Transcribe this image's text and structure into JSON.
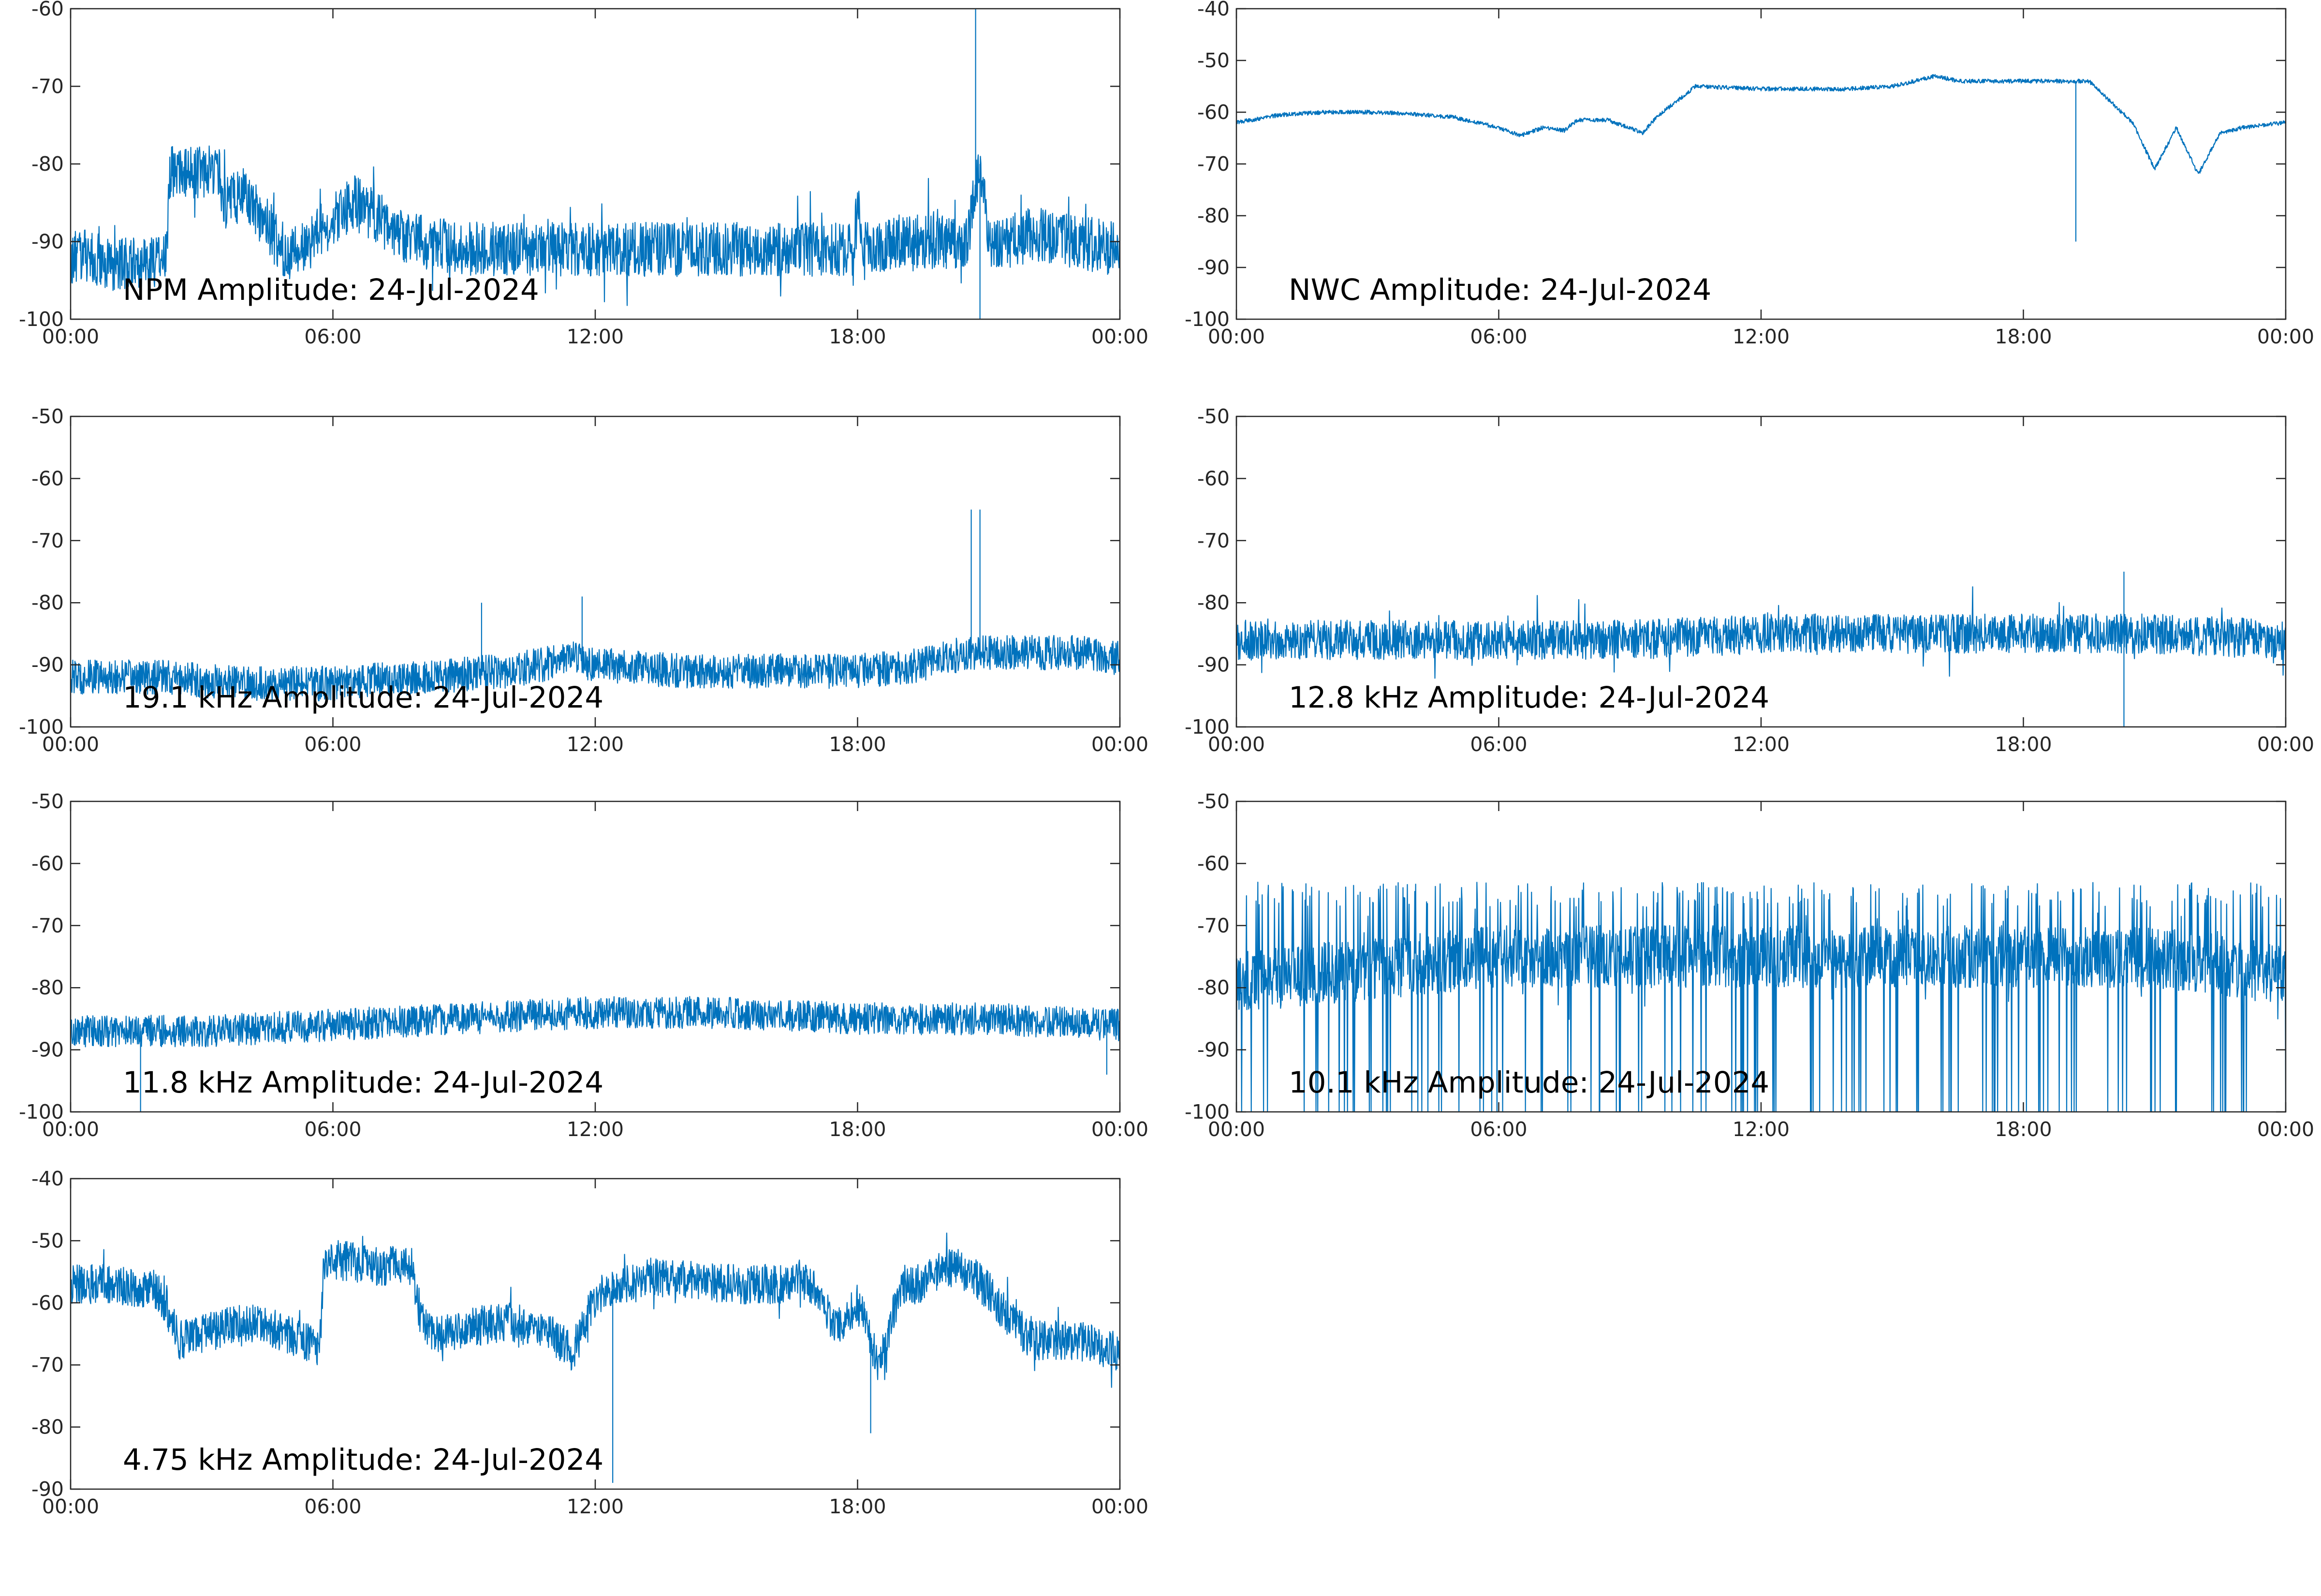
{
  "colors": {
    "trace": "#0072BD",
    "axes": "#262626",
    "text": "#000000"
  },
  "chart_data": [
    {
      "type": "line",
      "panel": "NPM",
      "title": "NPM Amplitude: 24-Jul-2024",
      "x_ticks": [
        "00:00",
        "06:00",
        "12:00",
        "18:00",
        "00:00"
      ],
      "ylim": [
        -100,
        -60
      ],
      "y_ticks": [
        -100,
        -90,
        -80,
        -70,
        -60
      ],
      "grid": false,
      "x_hours": [
        0,
        0.5,
        1,
        1.5,
        2,
        2.2,
        2.25,
        3,
        3.4,
        3.5,
        4,
        4.5,
        5,
        5.5,
        6,
        6.5,
        7,
        7.5,
        8,
        9,
        10,
        11,
        12,
        13,
        14,
        15,
        16,
        17,
        17.9,
        18,
        18.1,
        19,
        20,
        20.5,
        20.8,
        21,
        21.5,
        22,
        23,
        24
      ],
      "y_mean": [
        -92,
        -92,
        -93,
        -93,
        -93,
        -92,
        -81,
        -81,
        -81,
        -85,
        -84,
        -88,
        -92,
        -90,
        -87,
        -85,
        -87,
        -89,
        -90,
        -91,
        -91,
        -91,
        -91,
        -91,
        -91,
        -91,
        -91,
        -91,
        -91,
        -85,
        -91,
        -90,
        -90,
        -90,
        -80,
        -90,
        -90,
        -89,
        -90,
        -91
      ],
      "noise": 3.5,
      "spikes": [
        {
          "x": 20.7,
          "y": -60
        },
        {
          "x": 20.8,
          "y": -100
        }
      ]
    },
    {
      "type": "line",
      "panel": "NWC",
      "title": "NWC Amplitude: 24-Jul-2024",
      "x_ticks": [
        "00:00",
        "06:00",
        "12:00",
        "18:00",
        "00:00"
      ],
      "ylim": [
        -100,
        -40
      ],
      "y_ticks": [
        -100,
        -90,
        -80,
        -70,
        -60,
        -50,
        -40
      ],
      "grid": false,
      "x_hours": [
        0,
        1,
        2,
        3,
        4,
        5,
        6,
        6.5,
        7,
        7.5,
        7.8,
        8.5,
        9.3,
        9.6,
        10.5,
        12,
        14,
        15,
        16,
        16.5,
        18,
        19.5,
        20,
        20.5,
        21,
        21.5,
        22,
        22.5,
        23,
        24
      ],
      "y_mean": [
        -62,
        -60.5,
        -60,
        -60,
        -60.3,
        -61,
        -63,
        -64.5,
        -63,
        -63.5,
        -61.5,
        -61.5,
        -64,
        -61,
        -55,
        -55.5,
        -55.5,
        -55,
        -53,
        -54,
        -54,
        -54,
        -58,
        -62,
        -71,
        -63,
        -72,
        -64,
        -63,
        -62
      ],
      "noise": 0.4,
      "spikes": [
        {
          "x": 19.2,
          "y": -85
        }
      ]
    },
    {
      "type": "line",
      "panel": "19.1 kHz",
      "title": "19.1 kHz Amplitude: 24-Jul-2024",
      "x_ticks": [
        "00:00",
        "06:00",
        "12:00",
        "18:00",
        "00:00"
      ],
      "ylim": [
        -100,
        -50
      ],
      "y_ticks": [
        -100,
        -90,
        -80,
        -70,
        -60,
        -50
      ],
      "grid": false,
      "x_hours": [
        0,
        2,
        4,
        6,
        8,
        10,
        11.5,
        12,
        14,
        16,
        18,
        19.5,
        20.5,
        21,
        22,
        23,
        24
      ],
      "y_mean": [
        -92,
        -92,
        -93,
        -93,
        -92,
        -91,
        -89,
        -90,
        -91,
        -91,
        -91,
        -90,
        -88,
        -88,
        -88,
        -88,
        -89
      ],
      "noise": 2.8,
      "spikes": [
        {
          "x": 20.6,
          "y": -65
        },
        {
          "x": 20.8,
          "y": -65
        },
        {
          "x": 11.7,
          "y": -79
        },
        {
          "x": 9.4,
          "y": -80
        }
      ]
    },
    {
      "type": "line",
      "panel": "12.8 kHz",
      "title": "12.8 kHz Amplitude: 24-Jul-2024",
      "x_ticks": [
        "00:00",
        "06:00",
        "12:00",
        "18:00",
        "00:00"
      ],
      "ylim": [
        -100,
        -50
      ],
      "y_ticks": [
        -100,
        -90,
        -80,
        -70,
        -60,
        -50
      ],
      "grid": false,
      "x_hours": [
        0,
        3,
        6,
        9,
        12,
        15,
        18,
        21,
        24
      ],
      "y_mean": [
        -86,
        -86,
        -86,
        -86,
        -85,
        -85,
        -85,
        -85,
        -86
      ],
      "noise": 3.2,
      "spikes": [
        {
          "x": 20.3,
          "y": -75
        },
        {
          "x": 20.3,
          "y": -100
        }
      ]
    },
    {
      "type": "line",
      "panel": "11.8 kHz",
      "title": "11.8 kHz Amplitude: 24-Jul-2024",
      "x_ticks": [
        "00:00",
        "06:00",
        "12:00",
        "18:00",
        "00:00"
      ],
      "ylim": [
        -100,
        -50
      ],
      "y_ticks": [
        -100,
        -90,
        -80,
        -70,
        -60,
        -50
      ],
      "grid": false,
      "x_hours": [
        0,
        3,
        6,
        9,
        12,
        15,
        18,
        21,
        24
      ],
      "y_mean": [
        -87,
        -87,
        -86,
        -85,
        -84,
        -84,
        -85,
        -85,
        -86
      ],
      "noise": 2.6,
      "spikes": [
        {
          "x": 1.6,
          "y": -100
        },
        {
          "x": 23.7,
          "y": -94
        }
      ]
    },
    {
      "type": "line",
      "panel": "10.1 kHz",
      "title": "10.1 kHz Amplitude: 24-Jul-2024",
      "x_ticks": [
        "00:00",
        "06:00",
        "12:00",
        "18:00",
        "00:00"
      ],
      "ylim": [
        -100,
        -50
      ],
      "y_ticks": [
        -100,
        -90,
        -80,
        -70,
        -60,
        -50
      ],
      "grid": false,
      "x_hours": [
        0,
        3,
        6,
        9,
        12,
        15,
        18,
        21,
        24
      ],
      "y_mean": [
        -79,
        -77,
        -75,
        -75,
        -75,
        -75,
        -75,
        -75,
        -78
      ],
      "noise": 5,
      "spikes": []
    },
    {
      "type": "line",
      "panel": "4.75 kHz",
      "title": "4.75 kHz Amplitude: 24-Jul-2024",
      "x_ticks": [
        "00:00",
        "06:00",
        "12:00",
        "18:00",
        "00:00"
      ],
      "ylim": [
        -90,
        -40
      ],
      "y_ticks": [
        -90,
        -80,
        -70,
        -60,
        -50,
        -40
      ],
      "grid": false,
      "x_hours": [
        0,
        1,
        2,
        2.5,
        3,
        4,
        5,
        5.7,
        5.8,
        6,
        7,
        7.8,
        8,
        8.3,
        9,
        10,
        11,
        11.5,
        12,
        13,
        14,
        15,
        16,
        17,
        17.5,
        18,
        18.5,
        19,
        19.5,
        20,
        20.5,
        21,
        21.5,
        22,
        23,
        24
      ],
      "y_mean": [
        -57,
        -57,
        -58,
        -66,
        -65,
        -63,
        -65,
        -67,
        -53,
        -53,
        -54,
        -54,
        -62,
        -65,
        -64,
        -63,
        -65,
        -68,
        -59,
        -56,
        -56,
        -57,
        -57,
        -57,
        -64,
        -60,
        -70,
        -57,
        -57,
        -54,
        -55,
        -58,
        -63,
        -66,
        -66,
        -68
      ],
      "noise": 3.2,
      "spikes": [
        {
          "x": 12.4,
          "y": -89
        },
        {
          "x": 18.3,
          "y": -81
        }
      ]
    }
  ]
}
